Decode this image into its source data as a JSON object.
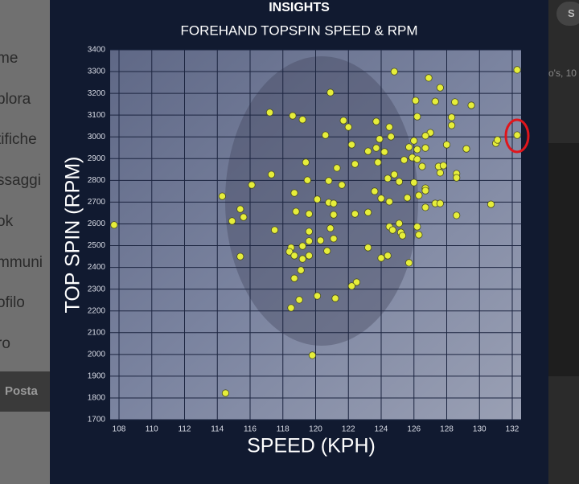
{
  "background": {
    "menu": [
      "me",
      "plora",
      "tifiche",
      "ssaggi",
      "ok",
      "mmuni",
      "ofilo",
      "ro"
    ],
    "button": "Posta",
    "snippet": "o's, 10",
    "avatar": "S"
  },
  "chart_data": {
    "type": "scatter",
    "title": "INSIGHTS",
    "subtitle": "FOREHAND TOPSPIN SPEED & RPM",
    "x_label": "SPEED (KPH)",
    "y_label": "TOP SPIN (RPM)",
    "xlim": [
      107.46,
      132.54
    ],
    "ylim": [
      1700,
      3400
    ],
    "xticks": [
      108,
      110,
      112,
      114,
      116,
      118,
      120,
      122,
      124,
      126,
      128,
      130,
      132
    ],
    "yticks": [
      1700,
      1800,
      1900,
      2000,
      2100,
      2200,
      2300,
      2400,
      2500,
      2600,
      2700,
      2800,
      2900,
      3000,
      3100,
      3200,
      3300,
      3400
    ],
    "grid": true,
    "series": [
      {
        "color": "#e6ee3a",
        "x": [
          107.7,
          132.3,
          132.3,
          131.0,
          131.1,
          124.8,
          126.9,
          127.6,
          120.9,
          126.1,
          127.3,
          128.5,
          129.5,
          117.2,
          118.6,
          119.2,
          121.7,
          123.7,
          126.2,
          128.3,
          124.5,
          122.0,
          128.3,
          127.0,
          126.7,
          126.0,
          124.6,
          123.9,
          120.6,
          122.2,
          125.7,
          126.2,
          126.7,
          128.0,
          123.7,
          124.2,
          123.2,
          125.9,
          125.4,
          126.2,
          126.5,
          127.5,
          127.8,
          129.2,
          119.4,
          122.4,
          123.8,
          124.8,
          124.4,
          125.1,
          127.6,
          128.6,
          128.6,
          121.3,
          117.3,
          119.5,
          120.8,
          121.6,
          116.1,
          126.0,
          126.7,
          126.7,
          123.6,
          118.7,
          114.3,
          120.1,
          120.8,
          121.1,
          124.0,
          124.5,
          125.6,
          126.3,
          126.7,
          127.3,
          127.6,
          130.7,
          115.4,
          115.6,
          114.9,
          118.8,
          119.6,
          121.1,
          122.4,
          123.2,
          128.6,
          125.1,
          124.5,
          124.7,
          125.2,
          125.3,
          126.2,
          126.3,
          117.5,
          119.6,
          120.9,
          121.1,
          119.6,
          120.3,
          118.5,
          118.4,
          119.2,
          120.7,
          123.2,
          118.7,
          119.2,
          119.6,
          115.4,
          124.0,
          124.4,
          125.7,
          119.1,
          118.7,
          122.5,
          122.2,
          120.1,
          119.0,
          121.2,
          118.5,
          119.8,
          114.5
        ],
        "values": [
          2595,
          3308,
          3008,
          2971,
          2986,
          3300,
          3271,
          3226,
          3204,
          3167,
          3163,
          3160,
          3145,
          3112,
          3097,
          3079,
          3075,
          3071,
          3093,
          3090,
          3045,
          3045,
          3053,
          3019,
          3005,
          2982,
          3001,
          2990,
          3008,
          2964,
          2953,
          2942,
          2949,
          2964,
          2949,
          2931,
          2934,
          2905,
          2894,
          2897,
          2864,
          2864,
          2868,
          2945,
          2883,
          2875,
          2883,
          2827,
          2809,
          2794,
          2835,
          2831,
          2812,
          2857,
          2827,
          2801,
          2798,
          2779,
          2779,
          2790,
          2764,
          2753,
          2750,
          2742,
          2727,
          2713,
          2698,
          2694,
          2717,
          2702,
          2720,
          2731,
          2676,
          2694,
          2694,
          2690,
          2668,
          2631,
          2613,
          2657,
          2646,
          2642,
          2646,
          2653,
          2639,
          2602,
          2587,
          2572,
          2561,
          2546,
          2587,
          2550,
          2572,
          2565,
          2580,
          2532,
          2521,
          2524,
          2491,
          2472,
          2498,
          2476,
          2491,
          2454,
          2439,
          2454,
          2450,
          2443,
          2454,
          2421,
          2387,
          2350,
          2332,
          2314,
          2269,
          2251,
          2258,
          2214,
          1996,
          1822
        ]
      }
    ]
  }
}
